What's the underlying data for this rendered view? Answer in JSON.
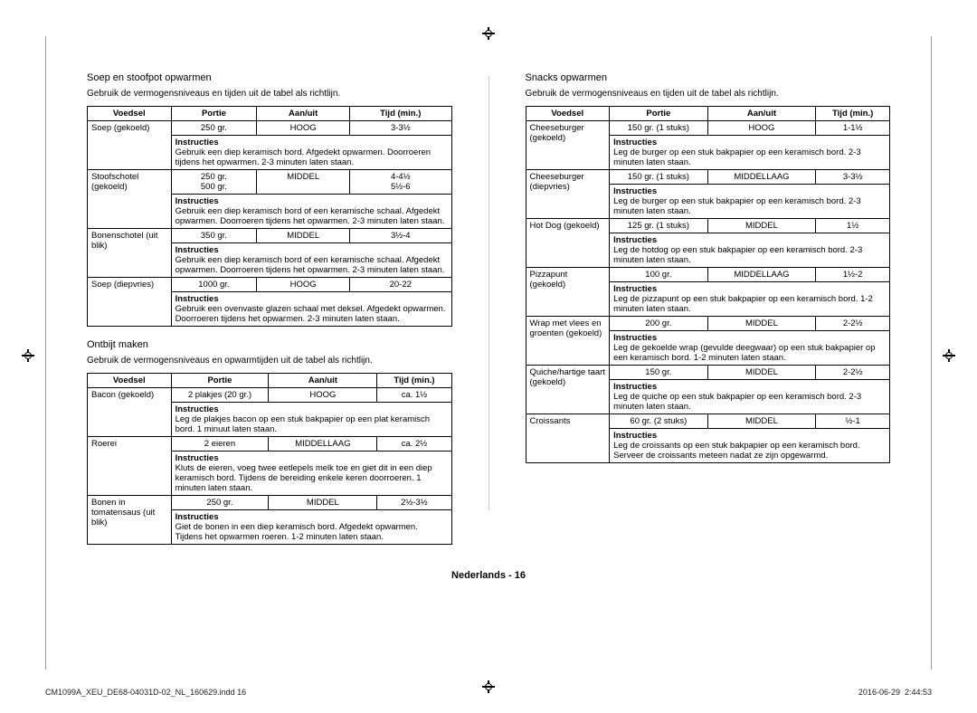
{
  "col_headers": [
    "Voedsel",
    "Portie",
    "Aan/uit",
    "Tijd (min.)"
  ],
  "instructies_label": "Instructies",
  "page_label": "Nederlands - 16",
  "print_file": "CM1099A_XEU_DE68-04031D-02_NL_160629.indd   16",
  "print_time": "2016-06-29   ‎‎‎ 2:44:53",
  "soep": {
    "title": "Soep en stoofpot opwarmen",
    "sub": "Gebruik de vermogensniveaus en tijden uit de tabel als richtlijn.",
    "rows": [
      {
        "food": "Soep (gekoeld)",
        "portie": "250 gr.",
        "power": "HOOG",
        "tijd": "3-3½",
        "instr": "Gebruik een diep keramisch bord. Afgedekt opwarmen. Doorroeren tijdens het opwarmen. 2-3 minuten laten staan."
      },
      {
        "food": "Stoofschotel (gekoeld)",
        "portie": "250 gr.\n500 gr.",
        "power": "MIDDEL",
        "tijd": "4-4½\n5½-6",
        "instr": "Gebruik een diep keramisch bord of een keramische schaal. Afgedekt opwarmen. Doorroeren tijdens het opwarmen. 2-3 minuten laten staan."
      },
      {
        "food": "Bonenschotel (uit blik)",
        "portie": "350 gr.",
        "power": "MIDDEL",
        "tijd": "3½-4",
        "instr": "Gebruik een diep keramisch bord of een keramische schaal. Afgedekt opwarmen. Doorroeren tijdens het opwarmen. 2-3 minuten laten staan."
      },
      {
        "food": "Soep (diepvries)",
        "portie": "1000 gr.",
        "power": "HOOG",
        "tijd": "20-22",
        "instr": "Gebruik een ovenvaste glazen schaal met deksel. Afgedekt opwarmen. Doorroeren tijdens het opwarmen. 2-3 minuten laten staan."
      }
    ]
  },
  "ontbijt": {
    "title": "Ontbijt maken",
    "sub": "Gebruik de vermogensniveaus en opwarmtijden uit de tabel als richtlijn.",
    "rows": [
      {
        "food": "Bacon (gekoeld)",
        "portie": "2 plakjes (20 gr.)",
        "power": "HOOG",
        "tijd": "ca. 1½",
        "instr": "Leg de plakjes bacon op een stuk bakpapier op een plat keramisch bord. 1 minuut laten staan."
      },
      {
        "food": "Roerei",
        "portie": "2 eieren",
        "power": "MIDDELLAAG",
        "tijd": "ca. 2½",
        "instr": "Kluts de eieren, voeg twee eetlepels melk toe en giet dit in een diep keramisch bord. Tijdens de bereiding enkele keren doorroeren. 1 minuten laten staan."
      },
      {
        "food": "Bonen in tomatensaus (uit blik)",
        "portie": "250 gr.",
        "power": "MIDDEL",
        "tijd": "2½-3½",
        "instr": "Giet de bonen in een diep keramisch bord. Afgedekt opwarmen. Tijdens het opwarmen roeren. 1-2 minuten laten staan."
      }
    ]
  },
  "snacks": {
    "title": "Snacks opwarmen",
    "sub": "Gebruik de vermogensniveaus en tijden uit de tabel als richtlijn.",
    "rows": [
      {
        "food": "Cheeseburger (gekoeld)",
        "portie": "150 gr. (1 stuks)",
        "power": "HOOG",
        "tijd": "1-1½",
        "instr": "Leg de burger op een stuk bakpapier op een keramisch bord. 2-3 minuten laten staan."
      },
      {
        "food": "Cheeseburger (diepvries)",
        "portie": "150 gr. (1 stuks)",
        "power": "MIDDELLAAG",
        "tijd": "3-3½",
        "instr": "Leg de burger op een stuk bakpapier op een keramisch bord. 2-3 minuten laten staan."
      },
      {
        "food": "Hot Dog (gekoeld)",
        "portie": "125 gr. (1 stuks)",
        "power": "MIDDEL",
        "tijd": "1½",
        "instr": "Leg de hotdog op een stuk bakpapier op een keramisch bord. 2-3 minuten laten staan."
      },
      {
        "food": "Pizzapunt (gekoeld)",
        "portie": "100 gr.",
        "power": "MIDDELLAAG",
        "tijd": "1½-2",
        "instr": "Leg de pizzapunt op een stuk bakpapier op een keramisch bord. 1-2 minuten laten staan."
      },
      {
        "food": "Wrap met vlees en groenten (gekoeld)",
        "portie": "200 gr.",
        "power": "MIDDEL",
        "tijd": "2-2½",
        "instr": "Leg de gekoelde wrap (gevulde deegwaar) op een stuk bakpapier op een keramisch bord. 1-2 minuten laten staan."
      },
      {
        "food": "Quiche/hartige taart (gekoeld)",
        "portie": "150 gr.",
        "power": "MIDDEL",
        "tijd": "2-2½",
        "instr": "Leg de quiche op een stuk bakpapier op een keramisch bord. 2-3 minuten laten staan."
      },
      {
        "food": "Croissants",
        "portie": "60 gr. (2 stuks)",
        "power": "MIDDEL",
        "tijd": "½-1",
        "instr": "Leg de croissants op een stuk bakpapier op een keramisch bord. Serveer de croissants meteen nadat ze zijn opgewarmd."
      }
    ]
  }
}
